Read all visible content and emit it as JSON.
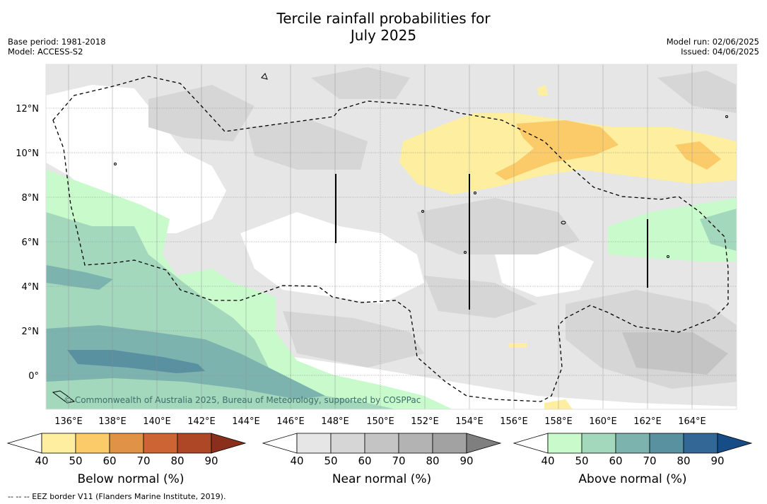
{
  "title_line1": "Tercile rainfall probabilities for",
  "title_line2": "July 2025",
  "meta_left": [
    "Base period: 1981-2018",
    "Model: ACCESS-S2"
  ],
  "meta_right": [
    "Model run: 02/06/2025",
    "Issued: 04/06/2025"
  ],
  "copyright": "© Commonwealth of Australia 2025, Bureau of Meteorology, supported by COSPPac",
  "lat_labels": [
    "12°N",
    "10°N",
    "8°N",
    "6°N",
    "4°N",
    "2°N",
    "0°"
  ],
  "lon_labels": [
    "136°E",
    "138°E",
    "140°E",
    "142°E",
    "144°E",
    "146°E",
    "148°E",
    "150°E",
    "152°E",
    "154°E",
    "156°E",
    "158°E",
    "160°E",
    "162°E",
    "164°E"
  ],
  "colorbars": [
    {
      "title": "Below normal (%)",
      "ticks": [
        "40",
        "50",
        "60",
        "70",
        "80",
        "90"
      ],
      "colors": [
        "#ffffff",
        "#fdeea0",
        "#fbcb6a",
        "#e09346",
        "#cc6434",
        "#ae4726",
        "#8a2f1c"
      ]
    },
    {
      "title": "Near normal (%)",
      "ticks": [
        "40",
        "50",
        "60",
        "70",
        "80",
        "90"
      ],
      "colors": [
        "#ffffff",
        "#e6e6e6",
        "#d6d6d6",
        "#c4c4c4",
        "#b3b3b3",
        "#a2a2a2",
        "#7f7f7f"
      ]
    },
    {
      "title": "Above normal (%)",
      "ticks": [
        "40",
        "50",
        "60",
        "70",
        "80",
        "90"
      ],
      "colors": [
        "#ffffff",
        "#c8facc",
        "#a4d8bc",
        "#7db3ae",
        "#5a91a1",
        "#336896",
        "#174d86"
      ]
    }
  ],
  "footnote": "--  --  -- EEZ border V11 (Flanders Marine Institute, 2019)."
}
